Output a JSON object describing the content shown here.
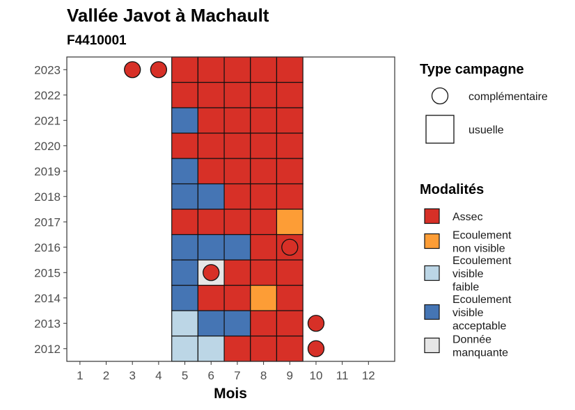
{
  "chart_data": {
    "type": "heatmap",
    "title": "Vallée Javot à Machault",
    "subtitle": "F4410001",
    "xlabel": "Mois",
    "ylabel": "",
    "x_ticks": [
      "1",
      "2",
      "3",
      "4",
      "5",
      "6",
      "7",
      "8",
      "9",
      "10",
      "11",
      "12"
    ],
    "y_ticks": [
      "2012",
      "2013",
      "2014",
      "2015",
      "2016",
      "2017",
      "2018",
      "2019",
      "2020",
      "2021",
      "2022",
      "2023"
    ],
    "grid": false,
    "colors": {
      "Assec": "#d73027",
      "Ecoulement non visible": "#fd9d36",
      "Ecoulement visible faible": "#bcd6e6",
      "Ecoulement visible acceptable": "#4575b4",
      "Donnée manquante": "#e6e6e6"
    },
    "tiles": [
      {
        "year": "2012",
        "month": 5,
        "modalite": "Ecoulement visible faible"
      },
      {
        "year": "2012",
        "month": 6,
        "modalite": "Ecoulement visible faible"
      },
      {
        "year": "2012",
        "month": 7,
        "modalite": "Assec"
      },
      {
        "year": "2012",
        "month": 8,
        "modalite": "Assec"
      },
      {
        "year": "2012",
        "month": 9,
        "modalite": "Assec"
      },
      {
        "year": "2013",
        "month": 5,
        "modalite": "Ecoulement visible faible"
      },
      {
        "year": "2013",
        "month": 6,
        "modalite": "Ecoulement visible acceptable"
      },
      {
        "year": "2013",
        "month": 7,
        "modalite": "Ecoulement visible acceptable"
      },
      {
        "year": "2013",
        "month": 8,
        "modalite": "Assec"
      },
      {
        "year": "2013",
        "month": 9,
        "modalite": "Assec"
      },
      {
        "year": "2014",
        "month": 5,
        "modalite": "Ecoulement visible acceptable"
      },
      {
        "year": "2014",
        "month": 6,
        "modalite": "Assec"
      },
      {
        "year": "2014",
        "month": 7,
        "modalite": "Assec"
      },
      {
        "year": "2014",
        "month": 8,
        "modalite": "Ecoulement non visible"
      },
      {
        "year": "2014",
        "month": 9,
        "modalite": "Assec"
      },
      {
        "year": "2015",
        "month": 5,
        "modalite": "Ecoulement visible acceptable"
      },
      {
        "year": "2015",
        "month": 6,
        "modalite": "Donnée manquante"
      },
      {
        "year": "2015",
        "month": 7,
        "modalite": "Assec"
      },
      {
        "year": "2015",
        "month": 8,
        "modalite": "Assec"
      },
      {
        "year": "2015",
        "month": 9,
        "modalite": "Assec"
      },
      {
        "year": "2016",
        "month": 5,
        "modalite": "Ecoulement visible acceptable"
      },
      {
        "year": "2016",
        "month": 6,
        "modalite": "Ecoulement visible acceptable"
      },
      {
        "year": "2016",
        "month": 7,
        "modalite": "Ecoulement visible acceptable"
      },
      {
        "year": "2016",
        "month": 8,
        "modalite": "Assec"
      },
      {
        "year": "2016",
        "month": 9,
        "modalite": "Assec"
      },
      {
        "year": "2017",
        "month": 5,
        "modalite": "Assec"
      },
      {
        "year": "2017",
        "month": 6,
        "modalite": "Assec"
      },
      {
        "year": "2017",
        "month": 7,
        "modalite": "Assec"
      },
      {
        "year": "2017",
        "month": 8,
        "modalite": "Assec"
      },
      {
        "year": "2017",
        "month": 9,
        "modalite": "Ecoulement non visible"
      },
      {
        "year": "2018",
        "month": 5,
        "modalite": "Ecoulement visible acceptable"
      },
      {
        "year": "2018",
        "month": 6,
        "modalite": "Ecoulement visible acceptable"
      },
      {
        "year": "2018",
        "month": 7,
        "modalite": "Assec"
      },
      {
        "year": "2018",
        "month": 8,
        "modalite": "Assec"
      },
      {
        "year": "2018",
        "month": 9,
        "modalite": "Assec"
      },
      {
        "year": "2019",
        "month": 5,
        "modalite": "Ecoulement visible acceptable"
      },
      {
        "year": "2019",
        "month": 6,
        "modalite": "Assec"
      },
      {
        "year": "2019",
        "month": 7,
        "modalite": "Assec"
      },
      {
        "year": "2019",
        "month": 8,
        "modalite": "Assec"
      },
      {
        "year": "2019",
        "month": 9,
        "modalite": "Assec"
      },
      {
        "year": "2020",
        "month": 5,
        "modalite": "Assec"
      },
      {
        "year": "2020",
        "month": 6,
        "modalite": "Assec"
      },
      {
        "year": "2020",
        "month": 7,
        "modalite": "Assec"
      },
      {
        "year": "2020",
        "month": 8,
        "modalite": "Assec"
      },
      {
        "year": "2020",
        "month": 9,
        "modalite": "Assec"
      },
      {
        "year": "2021",
        "month": 5,
        "modalite": "Ecoulement visible acceptable"
      },
      {
        "year": "2021",
        "month": 6,
        "modalite": "Assec"
      },
      {
        "year": "2021",
        "month": 7,
        "modalite": "Assec"
      },
      {
        "year": "2021",
        "month": 8,
        "modalite": "Assec"
      },
      {
        "year": "2021",
        "month": 9,
        "modalite": "Assec"
      },
      {
        "year": "2022",
        "month": 5,
        "modalite": "Assec"
      },
      {
        "year": "2022",
        "month": 6,
        "modalite": "Assec"
      },
      {
        "year": "2022",
        "month": 7,
        "modalite": "Assec"
      },
      {
        "year": "2022",
        "month": 8,
        "modalite": "Assec"
      },
      {
        "year": "2022",
        "month": 9,
        "modalite": "Assec"
      },
      {
        "year": "2023",
        "month": 5,
        "modalite": "Assec"
      },
      {
        "year": "2023",
        "month": 6,
        "modalite": "Assec"
      },
      {
        "year": "2023",
        "month": 7,
        "modalite": "Assec"
      },
      {
        "year": "2023",
        "month": 8,
        "modalite": "Assec"
      },
      {
        "year": "2023",
        "month": 9,
        "modalite": "Assec"
      }
    ],
    "points": [
      {
        "year": "2012",
        "month": 10,
        "modalite": "Assec"
      },
      {
        "year": "2013",
        "month": 10,
        "modalite": "Assec"
      },
      {
        "year": "2015",
        "month": 6,
        "modalite": "Assec"
      },
      {
        "year": "2016",
        "month": 9,
        "modalite": "Assec"
      },
      {
        "year": "2023",
        "month": 3,
        "modalite": "Assec"
      },
      {
        "year": "2023",
        "month": 4,
        "modalite": "Assec"
      }
    ],
    "legend_campagne": {
      "title": "Type campagne",
      "items": [
        {
          "label": "complémentaire",
          "shape": "circle"
        },
        {
          "label": "usuelle",
          "shape": "square"
        }
      ]
    },
    "legend_modalites": {
      "title": "Modalités",
      "items": [
        {
          "key": "Assec",
          "lines": [
            "Assec"
          ]
        },
        {
          "key": "Ecoulement non visible",
          "lines": [
            "Ecoulement",
            "non visible"
          ]
        },
        {
          "key": "Ecoulement visible faible",
          "lines": [
            "Ecoulement",
            "visible",
            "faible"
          ]
        },
        {
          "key": "Ecoulement visible acceptable",
          "lines": [
            "Ecoulement",
            "visible",
            "acceptable"
          ]
        },
        {
          "key": "Donnée manquante",
          "lines": [
            "Donnée",
            "manquante"
          ]
        }
      ]
    }
  }
}
